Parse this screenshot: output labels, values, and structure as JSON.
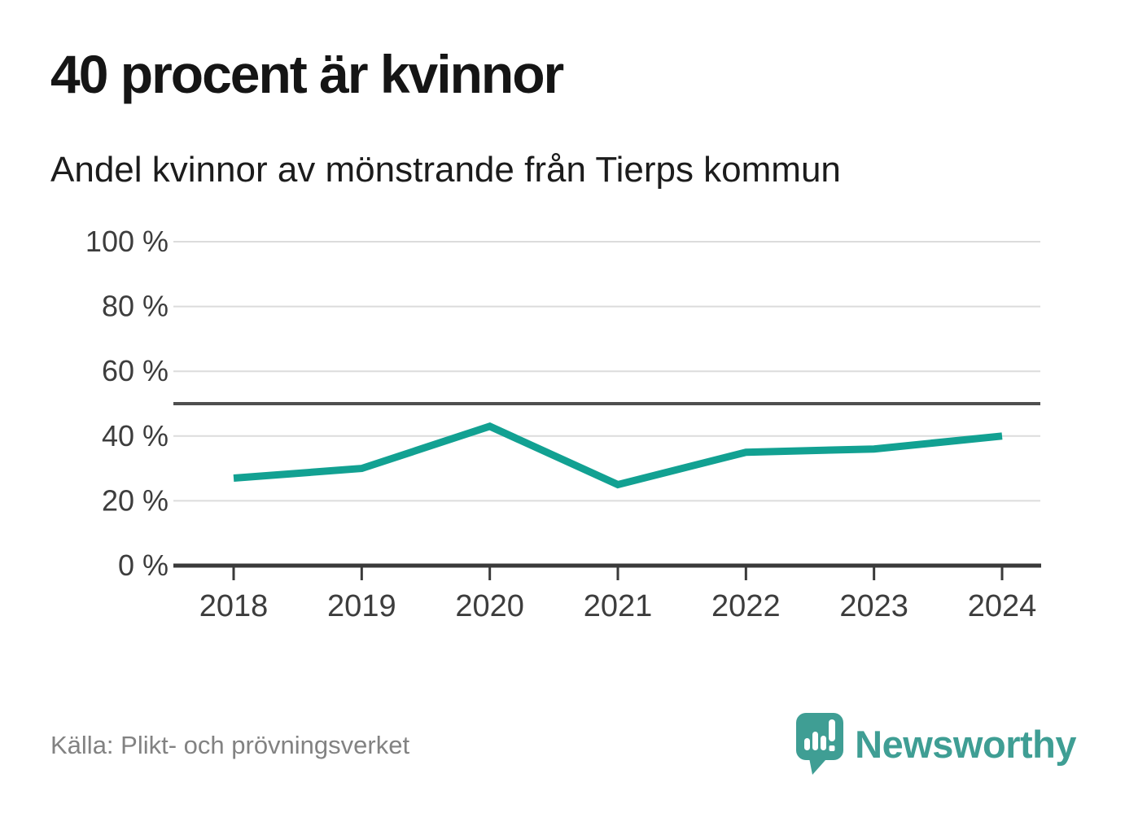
{
  "page": {
    "title": "40 procent är kvinnor",
    "subtitle": "Andel kvinnor av mönstrande från Tierps kommun",
    "source": "Källa: Plikt- och prövningsverket",
    "brand": "Newsworthy"
  },
  "colors": {
    "line": "#12a192",
    "brand": "#3f9e94",
    "grid": "#dcdcdc",
    "reference": "#4f4f4f",
    "axis": "#3a3a3a",
    "tick_label": "#3d3d3d",
    "title_text": "#151515",
    "source_text": "#828282"
  },
  "chart_data": {
    "type": "line",
    "title": "40 procent är kvinnor",
    "subtitle": "Andel kvinnor av mönstrande från Tierps kommun",
    "categories": [
      "2018",
      "2019",
      "2020",
      "2021",
      "2022",
      "2023",
      "2024"
    ],
    "series": [
      {
        "name": "Andel kvinnor av mönstrande",
        "values": [
          27,
          30,
          43,
          25,
          35,
          36,
          40
        ]
      }
    ],
    "unit": "%",
    "xlabel": "",
    "ylabel": "",
    "ylim": [
      0,
      100
    ],
    "yticks": [
      0,
      20,
      40,
      60,
      80,
      100
    ],
    "ytick_format": "{v} %",
    "reference_line": 50,
    "grid": true,
    "legend": "none",
    "source": "Källa: Plikt- och prövningsverket"
  }
}
